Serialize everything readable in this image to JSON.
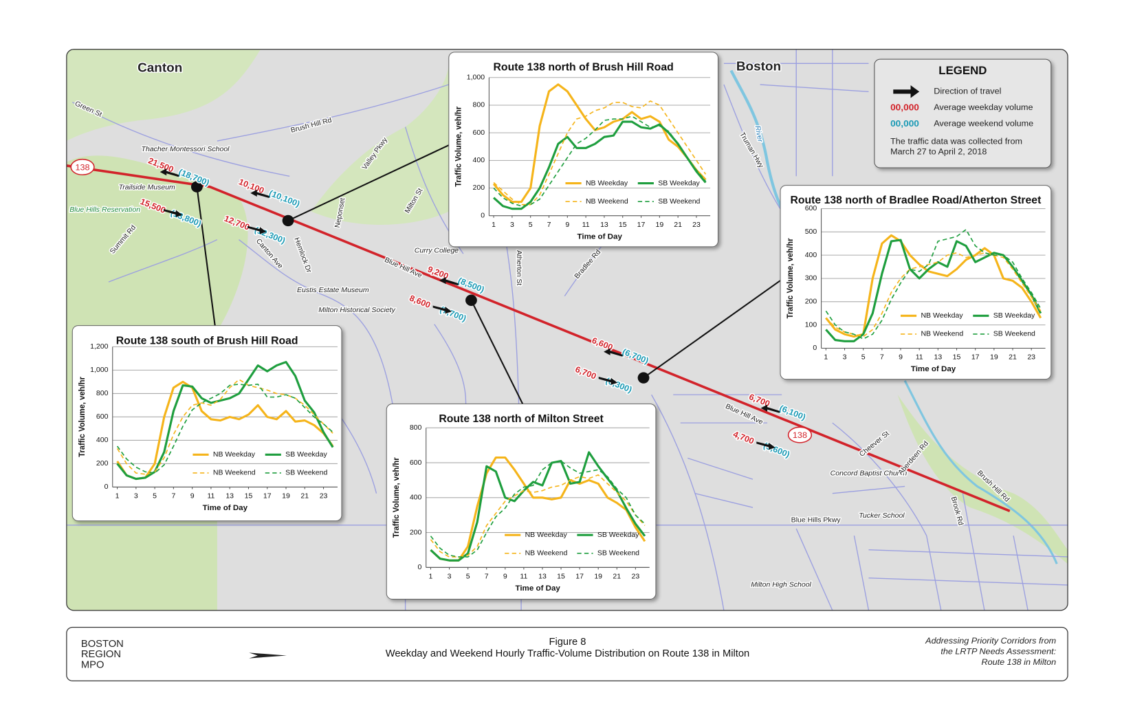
{
  "chart_data": [
    {
      "type": "line",
      "title": "Route 138 north of Brush Hill Road",
      "x": [
        1,
        2,
        3,
        4,
        5,
        6,
        7,
        8,
        9,
        10,
        11,
        12,
        13,
        14,
        15,
        16,
        17,
        18,
        19,
        20,
        21,
        22,
        23,
        24
      ],
      "xlim": [
        1,
        24
      ],
      "xticks": [
        1,
        3,
        5,
        7,
        9,
        11,
        13,
        15,
        17,
        19,
        21,
        23
      ],
      "ylim": [
        0,
        1000
      ],
      "yticks": [
        0,
        200,
        400,
        600,
        800,
        {
          "value": 1000,
          "label": "1,000"
        }
      ],
      "grid": true,
      "xlabel": "Time of Day",
      "ylabel": "Traffic Volume, veh/hr",
      "series": [
        {
          "name": "NB Weekday",
          "color": "#f5b41a",
          "style": "solid",
          "values": [
            230,
            150,
            100,
            100,
            200,
            650,
            900,
            950,
            900,
            800,
            700,
            620,
            640,
            680,
            700,
            750,
            700,
            720,
            680,
            550,
            500,
            420,
            330,
            260
          ]
        },
        {
          "name": "SB Weekday",
          "color": "#1e9e3e",
          "style": "solid",
          "values": [
            130,
            70,
            50,
            50,
            100,
            200,
            350,
            520,
            570,
            490,
            490,
            520,
            570,
            580,
            680,
            680,
            640,
            630,
            660,
            600,
            520,
            420,
            320,
            240
          ]
        },
        {
          "name": "NB Weekend",
          "color": "#f5b41a",
          "style": "dashed",
          "values": [
            240,
            180,
            120,
            80,
            80,
            150,
            300,
            450,
            600,
            700,
            720,
            760,
            780,
            820,
            820,
            790,
            780,
            830,
            800,
            700,
            600,
            500,
            400,
            300
          ]
        },
        {
          "name": "SB Weekend",
          "color": "#1e9e3e",
          "style": "dashed",
          "values": [
            200,
            130,
            90,
            70,
            80,
            120,
            220,
            320,
            420,
            520,
            560,
            620,
            690,
            700,
            700,
            720,
            680,
            640,
            650,
            610,
            520,
            420,
            330,
            250
          ]
        }
      ]
    },
    {
      "type": "line",
      "title": "Route 138 north of Bradlee Road/Atherton Street",
      "x": [
        1,
        2,
        3,
        4,
        5,
        6,
        7,
        8,
        9,
        10,
        11,
        12,
        13,
        14,
        15,
        16,
        17,
        18,
        19,
        20,
        21,
        22,
        23,
        24
      ],
      "xlim": [
        1,
        24
      ],
      "xticks": [
        1,
        3,
        5,
        7,
        9,
        11,
        13,
        15,
        17,
        19,
        21,
        23
      ],
      "ylim": [
        0,
        600
      ],
      "yticks": [
        0,
        100,
        200,
        300,
        400,
        500,
        600
      ],
      "grid": true,
      "xlabel": "Time of Day",
      "ylabel": "Traffic Volume, veh/hr",
      "series": [
        {
          "name": "NB Weekday",
          "color": "#f5b41a",
          "style": "solid",
          "values": [
            130,
            80,
            60,
            50,
            60,
            300,
            450,
            485,
            460,
            400,
            360,
            330,
            320,
            310,
            340,
            380,
            400,
            430,
            400,
            300,
            290,
            260,
            200,
            130
          ]
        },
        {
          "name": "SB Weekday",
          "color": "#1e9e3e",
          "style": "solid",
          "values": [
            80,
            35,
            30,
            30,
            60,
            150,
            320,
            460,
            465,
            340,
            300,
            340,
            370,
            350,
            460,
            440,
            370,
            390,
            410,
            400,
            350,
            290,
            230,
            150
          ]
        },
        {
          "name": "NB Weekend",
          "color": "#f5b41a",
          "style": "dashed",
          "values": [
            130,
            90,
            70,
            60,
            50,
            80,
            150,
            240,
            300,
            340,
            350,
            360,
            370,
            400,
            410,
            390,
            400,
            410,
            400,
            390,
            340,
            280,
            220,
            160
          ]
        },
        {
          "name": "SB Weekend",
          "color": "#1e9e3e",
          "style": "dashed",
          "values": [
            160,
            100,
            70,
            60,
            40,
            60,
            120,
            210,
            280,
            340,
            330,
            360,
            460,
            470,
            480,
            510,
            440,
            410,
            400,
            400,
            370,
            300,
            240,
            170
          ]
        }
      ]
    },
    {
      "type": "line",
      "title": "Route 138 south of Brush Hill Road",
      "x": [
        1,
        2,
        3,
        4,
        5,
        6,
        7,
        8,
        9,
        10,
        11,
        12,
        13,
        14,
        15,
        16,
        17,
        18,
        19,
        20,
        21,
        22,
        23,
        24
      ],
      "xlim": [
        1,
        24
      ],
      "xticks": [
        1,
        3,
        5,
        7,
        9,
        11,
        13,
        15,
        17,
        19,
        21,
        23
      ],
      "ylim": [
        0,
        1200
      ],
      "yticks": [
        0,
        200,
        400,
        600,
        800,
        {
          "value": 1000,
          "label": "1,000"
        },
        {
          "value": 1200,
          "label": "1,200"
        }
      ],
      "grid": true,
      "xlabel": "Time of Day",
      "ylabel": "Traffic Volume, veh/hr",
      "series": [
        {
          "name": "NB Weekday",
          "color": "#f5b41a",
          "style": "solid",
          "values": [
            220,
            100,
            70,
            80,
            200,
            600,
            850,
            900,
            850,
            650,
            580,
            570,
            600,
            580,
            620,
            700,
            600,
            580,
            650,
            560,
            570,
            530,
            460,
            350
          ]
        },
        {
          "name": "SB Weekday",
          "color": "#1e9e3e",
          "style": "solid",
          "values": [
            200,
            100,
            70,
            80,
            130,
            300,
            650,
            870,
            860,
            760,
            720,
            740,
            760,
            800,
            920,
            1040,
            990,
            1040,
            1070,
            950,
            740,
            640,
            470,
            340
          ]
        },
        {
          "name": "NB Weekend",
          "color": "#f5b41a",
          "style": "dashed",
          "values": [
            330,
            200,
            120,
            110,
            130,
            250,
            450,
            600,
            700,
            720,
            700,
            750,
            850,
            920,
            870,
            850,
            830,
            800,
            790,
            760,
            700,
            620,
            540,
            460
          ]
        },
        {
          "name": "SB Weekend",
          "color": "#1e9e3e",
          "style": "dashed",
          "values": [
            350,
            240,
            170,
            130,
            120,
            190,
            350,
            520,
            660,
            720,
            760,
            800,
            870,
            880,
            870,
            880,
            770,
            770,
            790,
            760,
            680,
            600,
            540,
            470
          ]
        }
      ]
    },
    {
      "type": "line",
      "title": "Route 138 north of Milton Street",
      "x": [
        1,
        2,
        3,
        4,
        5,
        6,
        7,
        8,
        9,
        10,
        11,
        12,
        13,
        14,
        15,
        16,
        17,
        18,
        19,
        20,
        21,
        22,
        23,
        24
      ],
      "xlim": [
        1,
        24
      ],
      "xticks": [
        1,
        3,
        5,
        7,
        9,
        11,
        13,
        15,
        17,
        19,
        21,
        23
      ],
      "ylim": [
        0,
        800
      ],
      "yticks": [
        0,
        200,
        400,
        600,
        800
      ],
      "grid": true,
      "xlabel": "Time of Day",
      "ylabel": "Traffic Volume, veh/hr",
      "series": [
        {
          "name": "NB Weekday",
          "color": "#f5b41a",
          "style": "solid",
          "values": [
            100,
            50,
            40,
            40,
            120,
            350,
            540,
            630,
            630,
            560,
            480,
            400,
            400,
            390,
            400,
            500,
            480,
            500,
            480,
            400,
            370,
            330,
            230,
            150
          ]
        },
        {
          "name": "SB Weekday",
          "color": "#1e9e3e",
          "style": "solid",
          "values": [
            100,
            50,
            40,
            40,
            80,
            260,
            580,
            550,
            400,
            380,
            440,
            490,
            470,
            600,
            610,
            480,
            490,
            660,
            580,
            510,
            440,
            340,
            250,
            180
          ]
        },
        {
          "name": "NB Weekend",
          "color": "#f5b41a",
          "style": "dashed",
          "values": [
            160,
            90,
            60,
            60,
            70,
            120,
            240,
            310,
            380,
            410,
            440,
            430,
            440,
            460,
            470,
            500,
            520,
            510,
            530,
            480,
            430,
            380,
            300,
            240
          ]
        },
        {
          "name": "SB Weekend",
          "color": "#1e9e3e",
          "style": "dashed",
          "values": [
            180,
            110,
            70,
            60,
            60,
            100,
            200,
            290,
            340,
            420,
            460,
            470,
            560,
            600,
            610,
            570,
            540,
            550,
            560,
            520,
            450,
            400,
            300,
            250
          ]
        }
      ]
    }
  ],
  "map": {
    "route_shield": "138",
    "places": [
      "Canton",
      "Boston",
      "Green St",
      "Brush Hill Rd",
      "Valley Pkwy",
      "Neponset",
      "Milton St",
      "Canton Ave",
      "Hemlock Dr",
      "Blue Hill Ave",
      "Summit Rd",
      "Blue Hills Reservation",
      "Thacher Montessori School",
      "Trailside Museum",
      "Curry College",
      "Eustis Estate Museum",
      "Milton Historical Society",
      "Atherton St",
      "Bradlee Rd",
      "Truman Hwy",
      "Cheever St",
      "Concord Baptist Church",
      "Aberdeen Rd",
      "Brush Hill Rd",
      "Brook Rd",
      "Blue Hills Pkwy",
      "Tucker School",
      "Milton High School",
      "Blue Hill Ave",
      "River"
    ],
    "stations": [
      {
        "nb_weekday": "21,500",
        "nb_weekend": "(18,700)",
        "sb_weekday": "15,500",
        "sb_weekend": "(13,800)"
      },
      {
        "nb_weekday": "10,100",
        "nb_weekend": "(10,100)",
        "sb_weekday": "12,700",
        "sb_weekend": "(12,300)"
      },
      {
        "nb_weekday": "9,200",
        "nb_weekend": "(8,500)",
        "sb_weekday": "8,600",
        "sb_weekend": "(7,700)"
      },
      {
        "nb_weekday": "6,600",
        "nb_weekend": "(6,700)",
        "sb_weekday": "6,700",
        "sb_weekend": "(6,300)"
      },
      {
        "nb_weekday": "6,700",
        "nb_weekend": "(6,100)",
        "sb_weekday": "4,700",
        "sb_weekend": "(5,600)"
      }
    ]
  },
  "legend": {
    "title": "LEGEND",
    "direction": "Direction of travel",
    "weekday_sample": "00,000",
    "weekday": "Average weekday volume",
    "weekend_sample": "00,000",
    "weekend": "Average weekend volume",
    "note": [
      "The traffic data was collected from",
      "March 27 to April 2, 2018"
    ]
  },
  "footer": {
    "org": [
      "BOSTON",
      "REGION",
      "MPO"
    ],
    "figure": "Figure 8",
    "caption": "Weekday and Weekend Hourly Traffic-Volume Distribution on Route 138 in Milton",
    "source": [
      "Addressing Priority Corridors from",
      "the LRTP Needs Assessment:",
      "Route 138 in Milton"
    ]
  }
}
